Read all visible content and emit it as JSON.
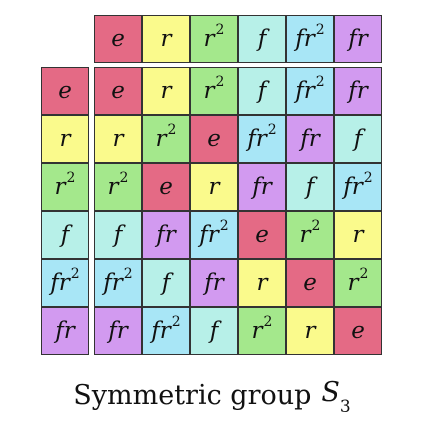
{
  "colors": {
    "e": "#e46a85",
    "r": "#fafa8c",
    "r^2": "#a4e88c",
    "f": "#b7f0e8",
    "fr^2": "#a8e6f6",
    "fr": "#d29af0"
  },
  "column_headers": [
    "e",
    "r",
    "r^2",
    "f",
    "fr^2",
    "fr"
  ],
  "row_headers": [
    "e",
    "r",
    "r^2",
    "f",
    "fr^2",
    "fr"
  ],
  "table": [
    [
      "e",
      "r",
      "r^2",
      "f",
      "fr^2",
      "fr"
    ],
    [
      "r",
      "r^2",
      "e",
      "fr^2",
      "fr",
      "f"
    ],
    [
      "r^2",
      "e",
      "r",
      "fr",
      "f",
      "fr^2"
    ],
    [
      "f",
      "fr",
      "fr^2",
      "e",
      "r^2",
      "r"
    ],
    [
      "fr^2",
      "f",
      "fr",
      "r",
      "e",
      "r^2"
    ],
    [
      "fr",
      "fr^2",
      "f",
      "r^2",
      "r",
      "e"
    ]
  ],
  "caption": {
    "text": "Symmetric group",
    "symbol": "S",
    "subscript": "3"
  }
}
